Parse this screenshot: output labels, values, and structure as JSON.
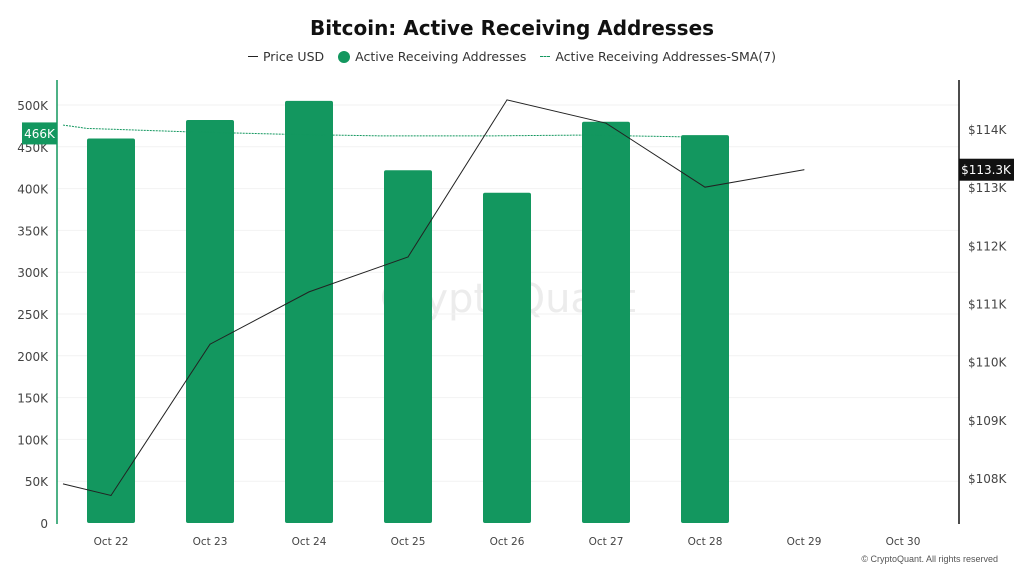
{
  "chart_data": {
    "type": "bar+line",
    "title": "Bitcoin: Active Receiving Addresses",
    "categories": [
      "Oct 22",
      "Oct 23",
      "Oct 24",
      "Oct 25",
      "Oct 26",
      "Oct 27",
      "Oct 28",
      "Oct 29",
      "Oct 30"
    ],
    "series": [
      {
        "name": "Price USD",
        "type": "line",
        "axis": "right",
        "color": "#222222",
        "lead_in_value": 107.9,
        "values": [
          107.7,
          110.3,
          111.2,
          111.8,
          114.5,
          114.1,
          113.0,
          113.3,
          null
        ]
      },
      {
        "name": "Active Receiving Addresses",
        "type": "bar",
        "axis": "left",
        "color": "#13975f",
        "values": [
          460000,
          482000,
          505000,
          422000,
          395000,
          480000,
          464000,
          null,
          null
        ]
      },
      {
        "name": "Active Receiving Addresses-SMA(7)",
        "type": "line-dashed",
        "axis": "left",
        "color": "#13975f",
        "lead_in_value": 476000,
        "values": [
          472000,
          468000,
          465000,
          463000,
          463000,
          464000,
          462000,
          null,
          null
        ]
      }
    ],
    "left_axis": {
      "ylim": [
        0,
        500000
      ],
      "ticks": [
        "0",
        "50K",
        "100K",
        "150K",
        "200K",
        "250K",
        "300K",
        "350K",
        "400K",
        "450K",
        "500K"
      ],
      "current_label": "466K",
      "current_value": 466000
    },
    "right_axis": {
      "ylim_thousands_usd": [
        107.5,
        114.8
      ],
      "ticks": [
        "$108K",
        "$109K",
        "$110K",
        "$111K",
        "$112K",
        "$113K",
        "$114K"
      ],
      "current_label": "$113.3K",
      "current_value": 113.3
    },
    "grid": "horizontal",
    "legend": "top-center"
  },
  "watermark": "CryptoQuant",
  "credit": "© CryptoQuant. All rights reserved"
}
